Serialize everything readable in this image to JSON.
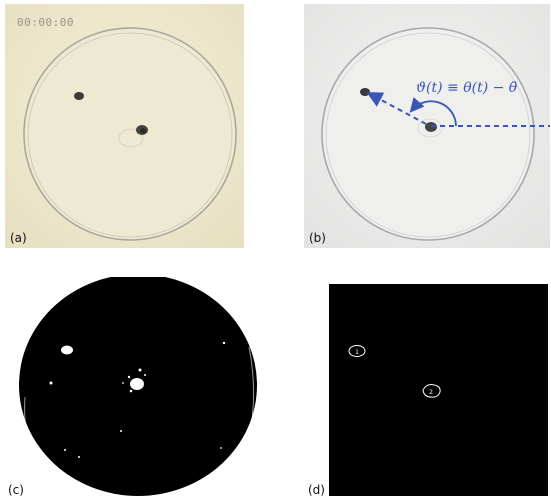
{
  "panels": {
    "a": {
      "label": "(a)",
      "timestamp": "00:00:00"
    },
    "b": {
      "label": "(b)",
      "equation": "ϑ(t) ≡ θ(t) − θ̄"
    },
    "c": {
      "label": "(c)"
    },
    "d": {
      "label": "(d)",
      "blob_labels": [
        "1",
        "2"
      ]
    }
  },
  "colors": {
    "photo_background_a": "#efe9cf",
    "photo_background_b": "#ebebea",
    "arrow_blue": "#3b55b4",
    "binary_foreground": "#ffffff",
    "binary_background": "#000000"
  }
}
